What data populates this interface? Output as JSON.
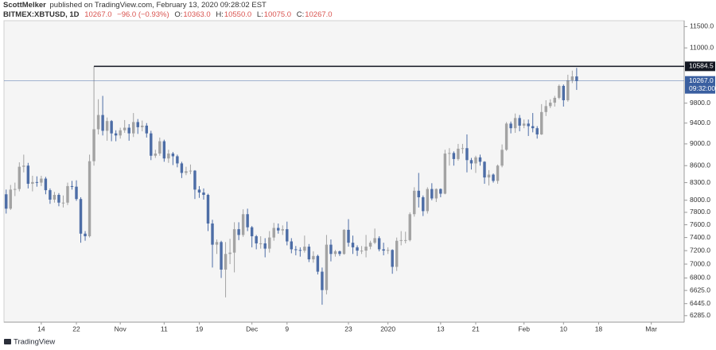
{
  "header": {
    "author": "ScottMelker",
    "published": "published on TradingView.com, February 13, 2020 09:28:02 EST",
    "symbol": "BITMEX:XBTUSD, 1D",
    "last": "10267.0",
    "change": "−96.0 (−0.93%)",
    "open_label": "O:",
    "open": "10363.0",
    "high_label": "H:",
    "high": "10550.0",
    "low_label": "L:",
    "low": "10075.0",
    "close_label": "C:",
    "close": "10267.0"
  },
  "footer": {
    "brand": "TradingView"
  },
  "chart_data": {
    "type": "candlestick",
    "log_scale": true,
    "grid": false,
    "up_color": "#a3a3a3",
    "down_color": "#4d6da6",
    "categories": [
      null,
      null,
      null,
      null,
      null,
      null,
      null,
      null,
      "14",
      null,
      null,
      null,
      null,
      null,
      null,
      null,
      "22",
      null,
      null,
      null,
      null,
      null,
      null,
      null,
      null,
      null,
      "Nov",
      null,
      null,
      null,
      null,
      null,
      null,
      null,
      null,
      null,
      "11",
      null,
      null,
      null,
      null,
      null,
      null,
      null,
      "19",
      null,
      null,
      null,
      null,
      null,
      null,
      null,
      null,
      null,
      null,
      null,
      "Dec",
      null,
      null,
      null,
      null,
      null,
      null,
      null,
      "9",
      null,
      null,
      null,
      null,
      null,
      null,
      null,
      null,
      null,
      null,
      null,
      null,
      null,
      "23",
      null,
      null,
      null,
      null,
      null,
      null,
      null,
      null,
      "2020",
      null,
      null,
      null,
      null,
      null,
      null,
      null,
      null,
      null,
      null,
      null,
      "13",
      null,
      null,
      null,
      null,
      null,
      null,
      null,
      "21",
      null,
      null,
      null,
      null,
      null,
      null,
      null,
      null,
      null,
      null,
      "Feb",
      null,
      null,
      null,
      null,
      null,
      null,
      null,
      null,
      "10",
      null,
      null,
      null,
      null,
      null,
      null,
      null,
      "18",
      null,
      null,
      null,
      null,
      null,
      null,
      null,
      null,
      null,
      null,
      null,
      "Mar",
      null,
      null,
      null,
      null,
      null,
      null,
      null
    ],
    "open": [
      8100,
      7860,
      8180,
      8190,
      8580,
      8600,
      8280,
      8310,
      8300,
      8370,
      8170,
      8010,
      8090,
      7960,
      7960,
      8240,
      8230,
      8020,
      7460,
      7420,
      8680,
      9280,
      9560,
      9250,
      9440,
      9200,
      9160,
      9260,
      9310,
      9200,
      9420,
      9320,
      9350,
      9200,
      8780,
      8820,
      9050,
      8730,
      8820,
      8770,
      8640,
      8470,
      8500,
      8510,
      8180,
      8130,
      8090,
      7620,
      7290,
      7330,
      6920,
      7150,
      7170,
      7530,
      7440,
      7770,
      7560,
      7420,
      7310,
      7310,
      7230,
      7400,
      7550,
      7510,
      7530,
      7340,
      7220,
      7210,
      7200,
      7260,
      7070,
      7120,
      6890,
      6630,
      7290,
      7150,
      7190,
      7150,
      7520,
      7320,
      7250,
      7200,
      7200,
      7260,
      7320,
      7390,
      7220,
      7200,
      7210,
      6960,
      7350,
      7360,
      7360,
      7770,
      8160,
      8050,
      7820,
      8190,
      8030,
      8190,
      8110,
      8820,
      8830,
      8720,
      8910,
      8920,
      8700,
      8640,
      8750,
      8670,
      8390,
      8440,
      8330,
      8600,
      8890,
      9390,
      9300,
      9500,
      9350,
      9390,
      9340,
      9300,
      9180,
      9620,
      9740,
      9810,
      9910,
      10160,
      9860,
      10280,
      10363,
      null,
      null,
      null,
      null,
      null,
      null,
      null,
      null,
      null,
      null,
      null,
      null,
      null,
      null,
      null,
      null,
      null,
      null,
      null,
      null,
      null,
      null,
      null,
      null
    ],
    "high": [
      8180,
      8260,
      8300,
      8660,
      8800,
      8650,
      8420,
      8410,
      8420,
      8400,
      8200,
      8140,
      8120,
      8080,
      8300,
      8330,
      8340,
      8050,
      7500,
      8800,
      10584.5,
      9880,
      9950,
      9510,
      9460,
      9260,
      9310,
      9460,
      9380,
      9600,
      9480,
      9450,
      9400,
      9250,
      8890,
      9120,
      9080,
      8890,
      8850,
      8800,
      8670,
      8580,
      8620,
      8520,
      8240,
      8200,
      8110,
      7680,
      7370,
      7350,
      7330,
      7380,
      7640,
      7640,
      7850,
      7860,
      7580,
      7440,
      7420,
      7390,
      7500,
      7630,
      7620,
      7590,
      7650,
      7390,
      7270,
      7250,
      7430,
      7300,
      7190,
      7140,
      6950,
      7440,
      7370,
      7210,
      7200,
      7530,
      7690,
      7430,
      7280,
      7270,
      7440,
      7350,
      7540,
      7420,
      7320,
      7250,
      7220,
      7400,
      7500,
      7490,
      7800,
      8220,
      8470,
      8080,
      8220,
      8290,
      8200,
      8200,
      8890,
      8920,
      8860,
      9000,
      9000,
      9180,
      8740,
      8780,
      8800,
      8680,
      8520,
      8460,
      8620,
      8990,
      9420,
      9430,
      9590,
      9560,
      9470,
      9470,
      9600,
      9340,
      9780,
      9860,
      9880,
      9950,
      10190,
      10190,
      10400,
      10490,
      10550,
      null,
      null,
      null,
      null,
      null,
      null,
      null,
      null,
      null,
      null,
      null,
      null,
      null,
      null,
      null,
      null,
      null,
      null,
      null,
      null,
      null,
      null,
      null,
      null
    ],
    "low": [
      7780,
      7840,
      8070,
      8150,
      8480,
      8200,
      8150,
      8230,
      8240,
      8100,
      7940,
      7960,
      7900,
      7880,
      7920,
      8180,
      7990,
      7320,
      7350,
      7400,
      8600,
      9180,
      9160,
      9060,
      9050,
      9050,
      9100,
      9210,
      9060,
      9130,
      9190,
      9240,
      9120,
      8700,
      8740,
      8780,
      8670,
      8650,
      8610,
      8570,
      8380,
      8430,
      8450,
      8020,
      8040,
      8010,
      7500,
      6950,
      7150,
      6800,
      6530,
      7000,
      6880,
      7360,
      7410,
      7500,
      7250,
      7220,
      7230,
      7100,
      7170,
      7350,
      7460,
      7440,
      7280,
      7160,
      7130,
      7110,
      7170,
      7030,
      7020,
      6850,
      6430,
      6570,
      7040,
      7110,
      7120,
      7140,
      7260,
      7150,
      7120,
      7150,
      7100,
      7220,
      7300,
      7190,
      7130,
      7150,
      6860,
      6900,
      7280,
      7310,
      7340,
      7730,
      7880,
      7740,
      7780,
      8000,
      7970,
      8050,
      8100,
      8600,
      8600,
      8690,
      8820,
      8480,
      8530,
      8470,
      8600,
      8280,
      8250,
      8300,
      8280,
      8570,
      8870,
      9200,
      9210,
      9240,
      9300,
      9150,
      9220,
      9100,
      9170,
      9540,
      9700,
      9730,
      9880,
      9730,
      9830,
      10220,
      10075,
      null,
      null,
      null,
      null,
      null,
      null,
      null,
      null,
      null,
      null,
      null,
      null,
      null,
      null,
      null,
      null,
      null,
      null,
      null,
      null,
      null,
      null,
      null,
      null
    ],
    "close": [
      7860,
      8180,
      8190,
      8580,
      8600,
      8280,
      8310,
      8300,
      8370,
      8170,
      8010,
      8090,
      7960,
      7960,
      8240,
      8230,
      8020,
      7460,
      7420,
      8680,
      9280,
      9560,
      9250,
      9440,
      9200,
      9160,
      9260,
      9310,
      9200,
      9420,
      9320,
      9350,
      9200,
      8780,
      8820,
      9050,
      8730,
      8820,
      8770,
      8640,
      8470,
      8500,
      8510,
      8180,
      8130,
      8090,
      7620,
      7290,
      7330,
      6920,
      7150,
      7170,
      7530,
      7440,
      7770,
      7560,
      7420,
      7310,
      7310,
      7230,
      7400,
      7550,
      7510,
      7530,
      7340,
      7220,
      7210,
      7200,
      7260,
      7070,
      7120,
      6890,
      6630,
      7290,
      7150,
      7190,
      7150,
      7520,
      7320,
      7250,
      7200,
      7200,
      7260,
      7320,
      7390,
      7220,
      7200,
      7210,
      6960,
      7350,
      7360,
      7360,
      7770,
      8160,
      8050,
      7820,
      8190,
      8030,
      8190,
      8110,
      8820,
      8830,
      8720,
      8910,
      8920,
      8700,
      8640,
      8750,
      8670,
      8390,
      8440,
      8330,
      8600,
      8890,
      9390,
      9300,
      9500,
      9350,
      9390,
      9340,
      9300,
      9180,
      9620,
      9740,
      9810,
      9910,
      10160,
      9860,
      10280,
      10363,
      10267,
      null,
      null,
      null,
      null,
      null,
      null,
      null,
      null,
      null,
      null,
      null,
      null,
      null,
      null,
      null,
      null,
      null,
      null,
      null,
      null,
      null,
      null,
      null,
      null
    ],
    "ylim": [
      6200,
      11800
    ],
    "yticks": [
      {
        "value": 6285,
        "label": "6285.0"
      },
      {
        "value": 6445,
        "label": "6445.0"
      },
      {
        "value": 6625,
        "label": "6625.0"
      },
      {
        "value": 6800,
        "label": "6800.0"
      },
      {
        "value": 7000,
        "label": "7000.0"
      },
      {
        "value": 7200,
        "label": "7200.0"
      },
      {
        "value": 7400,
        "label": "7400.0"
      },
      {
        "value": 7600,
        "label": "7600.0"
      },
      {
        "value": 7800,
        "label": "7800.0"
      },
      {
        "value": 8000,
        "label": "8000.0"
      },
      {
        "value": 8300,
        "label": "8300.0"
      },
      {
        "value": 8600,
        "label": "8600.0"
      },
      {
        "value": 9000,
        "label": "9000.0"
      },
      {
        "value": 9400,
        "label": "9400.0"
      },
      {
        "value": 9800,
        "label": "9800.0"
      },
      {
        "value": 11000,
        "label": "11000.0"
      },
      {
        "value": 11500,
        "label": "11500.0"
      }
    ],
    "annotations": [
      {
        "value": 10584.5,
        "label": "10584.5",
        "color": "#131722"
      }
    ],
    "price_line": {
      "value": 10267,
      "label": "10267.0",
      "countdown": "09:32:00",
      "color": "#3a5fa0"
    }
  }
}
